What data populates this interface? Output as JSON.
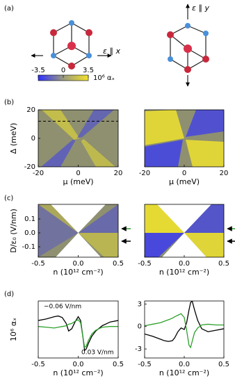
{
  "panel_labels": [
    "(a)",
    "(b)",
    "(c)",
    "(d)"
  ],
  "diagram": {
    "left_label": "ε ∥ x",
    "right_label": "ε ∥ y"
  },
  "colorbar": {
    "ticks": [
      -3.5,
      0,
      3.5
    ],
    "lim": [
      -3.5,
      3.5
    ],
    "label": "10⁶ αₓ",
    "colors": [
      "#3030ff",
      "#9a9a80",
      "#f2e22a"
    ]
  },
  "chart_data": [
    {
      "type": "heatmap",
      "xlim": [
        -20,
        20
      ],
      "xticks": [
        -20,
        0,
        20
      ],
      "ylim": [
        -20,
        20
      ],
      "yticks": [
        -20,
        0,
        20
      ],
      "xlabel": "μ (meV)",
      "ylabel": "Δ (meV)",
      "hline": 12
    },
    {
      "type": "heatmap",
      "xlim": [
        -20,
        20
      ],
      "xticks": [
        -20,
        0,
        20
      ],
      "ylim": [
        -20,
        20
      ],
      "xlabel": "μ (meV)"
    },
    {
      "type": "heatmap",
      "xlim": [
        -0.5,
        0.5
      ],
      "xticks": [
        -0.5,
        {
          "value": 0,
          "label": "0.0"
        },
        0.5
      ],
      "ylim": [
        -0.175,
        0.205
      ],
      "yticks": [
        -0.1,
        {
          "value": 0,
          "label": "0.0"
        },
        0.1
      ],
      "xlabel": "n (10¹² cm⁻²)",
      "ylabel": "D/ε₀ (V/nm)",
      "markers": [
        {
          "value": 0.03,
          "color": "#2ca02c"
        },
        {
          "value": -0.06,
          "color": "#000000"
        }
      ]
    },
    {
      "type": "heatmap",
      "xlim": [
        -0.5,
        0.5
      ],
      "xticks": [
        -0.5,
        {
          "value": 0,
          "label": "0.0"
        },
        0.5
      ],
      "ylim": [
        -0.175,
        0.205
      ],
      "xlabel": "n (10¹² cm⁻²)",
      "markers": [
        {
          "value": 0.03,
          "color": "#2ca02c"
        },
        {
          "value": -0.06,
          "color": "#000000"
        }
      ]
    },
    {
      "type": "line",
      "xlim": [
        -0.5,
        0.5
      ],
      "xticks": [
        -0.5,
        {
          "value": 0,
          "label": "0.0"
        },
        0.5
      ],
      "ylim": [
        -4.2,
        3.4
      ],
      "xlabel": "n (10¹² cm⁻²)",
      "ylabel": "10⁶ αₓ",
      "x": [
        -0.5,
        -0.4,
        -0.3,
        -0.25,
        -0.2,
        -0.15,
        -0.12,
        -0.08,
        -0.04,
        0,
        0.03,
        0.06,
        0.08,
        0.1,
        0.13,
        0.17,
        0.22,
        0.3,
        0.4,
        0.5
      ],
      "series": [
        {
          "name": "−0.06 V/nm",
          "color": "#000000",
          "values": [
            0.8,
            1.0,
            1.3,
            1.4,
            1.2,
            0.4,
            -0.6,
            -0.3,
            0.6,
            1.3,
            0.8,
            -1.5,
            -3.2,
            -3.0,
            -2.2,
            -1.3,
            -0.6,
            0.1,
            0.6,
            0.8
          ]
        },
        {
          "name": "0.03 V/nm",
          "color": "#2ca02c",
          "values": [
            0,
            -0.1,
            -0.2,
            -0.1,
            0,
            0.1,
            0.3,
            0.4,
            0.7,
            0.9,
            0.5,
            -1.5,
            -2.8,
            -2.6,
            -1.8,
            -1.0,
            -0.5,
            -0.1,
            0,
            0
          ]
        }
      ]
    },
    {
      "type": "line",
      "xlim": [
        -0.5,
        0.5
      ],
      "xticks": [
        -0.5,
        {
          "value": 0,
          "label": "0.0"
        },
        0.5
      ],
      "ylim": [
        -4.2,
        3.4
      ],
      "yticks": [
        -3,
        0,
        3
      ],
      "xlabel": "n (10¹² cm⁻²)",
      "x": [
        -0.5,
        -0.4,
        -0.3,
        -0.25,
        -0.2,
        -0.15,
        -0.12,
        -0.08,
        -0.04,
        0,
        0.03,
        0.06,
        0.08,
        0.1,
        0.13,
        0.17,
        0.22,
        0.3,
        0.4,
        0.5
      ],
      "series": [
        {
          "color": "#000000",
          "values": [
            -1.0,
            -1.3,
            -1.7,
            -1.9,
            -2.0,
            -1.9,
            -1.5,
            -0.7,
            -0.2,
            -0.4,
            0.5,
            2.2,
            3.2,
            3.4,
            2.2,
            0.8,
            -0.3,
            -0.7,
            -0.5,
            -0.3
          ]
        },
        {
          "color": "#2ca02c",
          "values": [
            0.1,
            0.3,
            0.5,
            0.7,
            0.9,
            1.1,
            1.3,
            1.5,
            1.7,
            1.2,
            -0.5,
            -2.5,
            -2.8,
            -2.0,
            -0.8,
            -0.2,
            0.2,
            0.3,
            0.2,
            0.2
          ]
        }
      ]
    }
  ]
}
